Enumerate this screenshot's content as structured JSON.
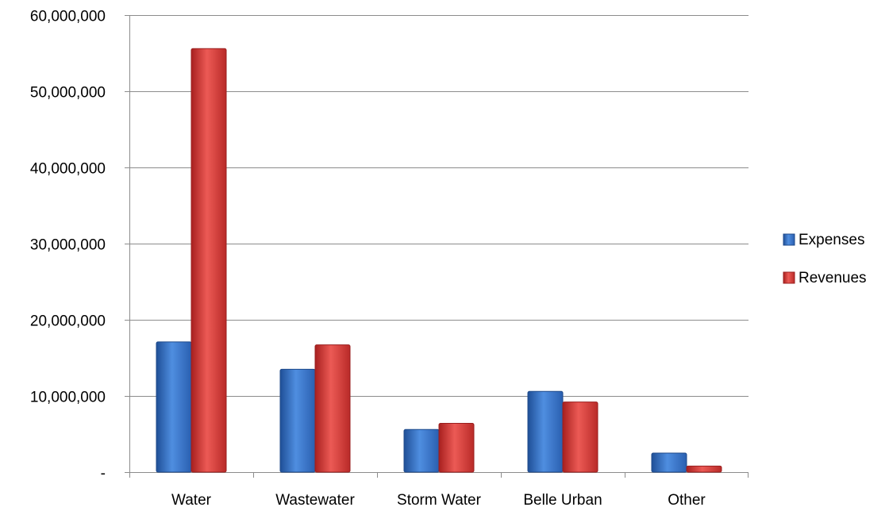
{
  "chart_data": {
    "type": "bar",
    "title": "",
    "xlabel": "",
    "ylabel": "",
    "categories": [
      "Water",
      "Wastewater",
      "Storm Water",
      "Belle Urban",
      "Other"
    ],
    "series": [
      {
        "name": "Expenses",
        "color": "#3a73c4",
        "values": [
          17100000,
          13500000,
          5600000,
          10600000,
          2500000
        ]
      },
      {
        "name": "Revenues",
        "color": "#d33a3a",
        "values": [
          55600000,
          16700000,
          6400000,
          9200000,
          800000
        ]
      }
    ],
    "ylim": [
      0,
      60000000
    ],
    "yticks": [
      0,
      10000000,
      20000000,
      30000000,
      40000000,
      50000000,
      60000000
    ],
    "ytick_labels": [
      "-",
      "10,000,000",
      "20,000,000",
      "30,000,000",
      "40,000,000",
      "50,000,000",
      "60,000,000"
    ],
    "grid": true,
    "legend_position": "right"
  }
}
